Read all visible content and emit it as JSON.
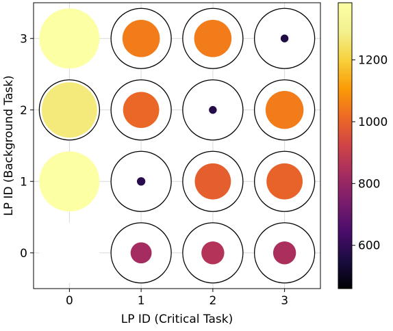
{
  "chart_data": {
    "type": "scatter",
    "xlabel": "LP ID (Critical Task)",
    "ylabel": "LP ID (Background Task)",
    "x_categories": [
      0,
      1,
      2,
      3
    ],
    "y_categories": [
      0,
      1,
      2,
      3
    ],
    "xlim": [
      -0.5,
      3.5
    ],
    "ylim": [
      -0.5,
      3.5
    ],
    "grid": true,
    "cells": [
      {
        "x": 0,
        "y": 0,
        "value": null,
        "fill_fraction": 0,
        "outline": false
      },
      {
        "x": 1,
        "y": 0,
        "value": 830,
        "fill_fraction": 0.35,
        "outline": true
      },
      {
        "x": 2,
        "y": 0,
        "value": 860,
        "fill_fraction": 0.38,
        "outline": true
      },
      {
        "x": 3,
        "y": 0,
        "value": 840,
        "fill_fraction": 0.38,
        "outline": true
      },
      {
        "x": 0,
        "y": 1,
        "value": 1390,
        "fill_fraction": 1.0,
        "outline": false
      },
      {
        "x": 1,
        "y": 1,
        "value": 580,
        "fill_fraction": 0.14,
        "outline": true
      },
      {
        "x": 2,
        "y": 1,
        "value": 990,
        "fill_fraction": 0.6,
        "outline": true
      },
      {
        "x": 3,
        "y": 1,
        "value": 1000,
        "fill_fraction": 0.6,
        "outline": true
      },
      {
        "x": 0,
        "y": 2,
        "value": 1270,
        "fill_fraction": 0.92,
        "outline": true
      },
      {
        "x": 1,
        "y": 2,
        "value": 1010,
        "fill_fraction": 0.6,
        "outline": true
      },
      {
        "x": 2,
        "y": 2,
        "value": 570,
        "fill_fraction": 0.13,
        "outline": true
      },
      {
        "x": 3,
        "y": 2,
        "value": 1050,
        "fill_fraction": 0.63,
        "outline": true
      },
      {
        "x": 0,
        "y": 3,
        "value": 1390,
        "fill_fraction": 1.0,
        "outline": false
      },
      {
        "x": 1,
        "y": 3,
        "value": 1050,
        "fill_fraction": 0.62,
        "outline": true
      },
      {
        "x": 2,
        "y": 3,
        "value": 1050,
        "fill_fraction": 0.62,
        "outline": true
      },
      {
        "x": 3,
        "y": 3,
        "value": 560,
        "fill_fraction": 0.13,
        "outline": true
      }
    ],
    "colorbar": {
      "colormap": "inferno",
      "range": [
        460,
        1385
      ],
      "ticks": [
        600,
        800,
        1000,
        1200
      ]
    }
  }
}
